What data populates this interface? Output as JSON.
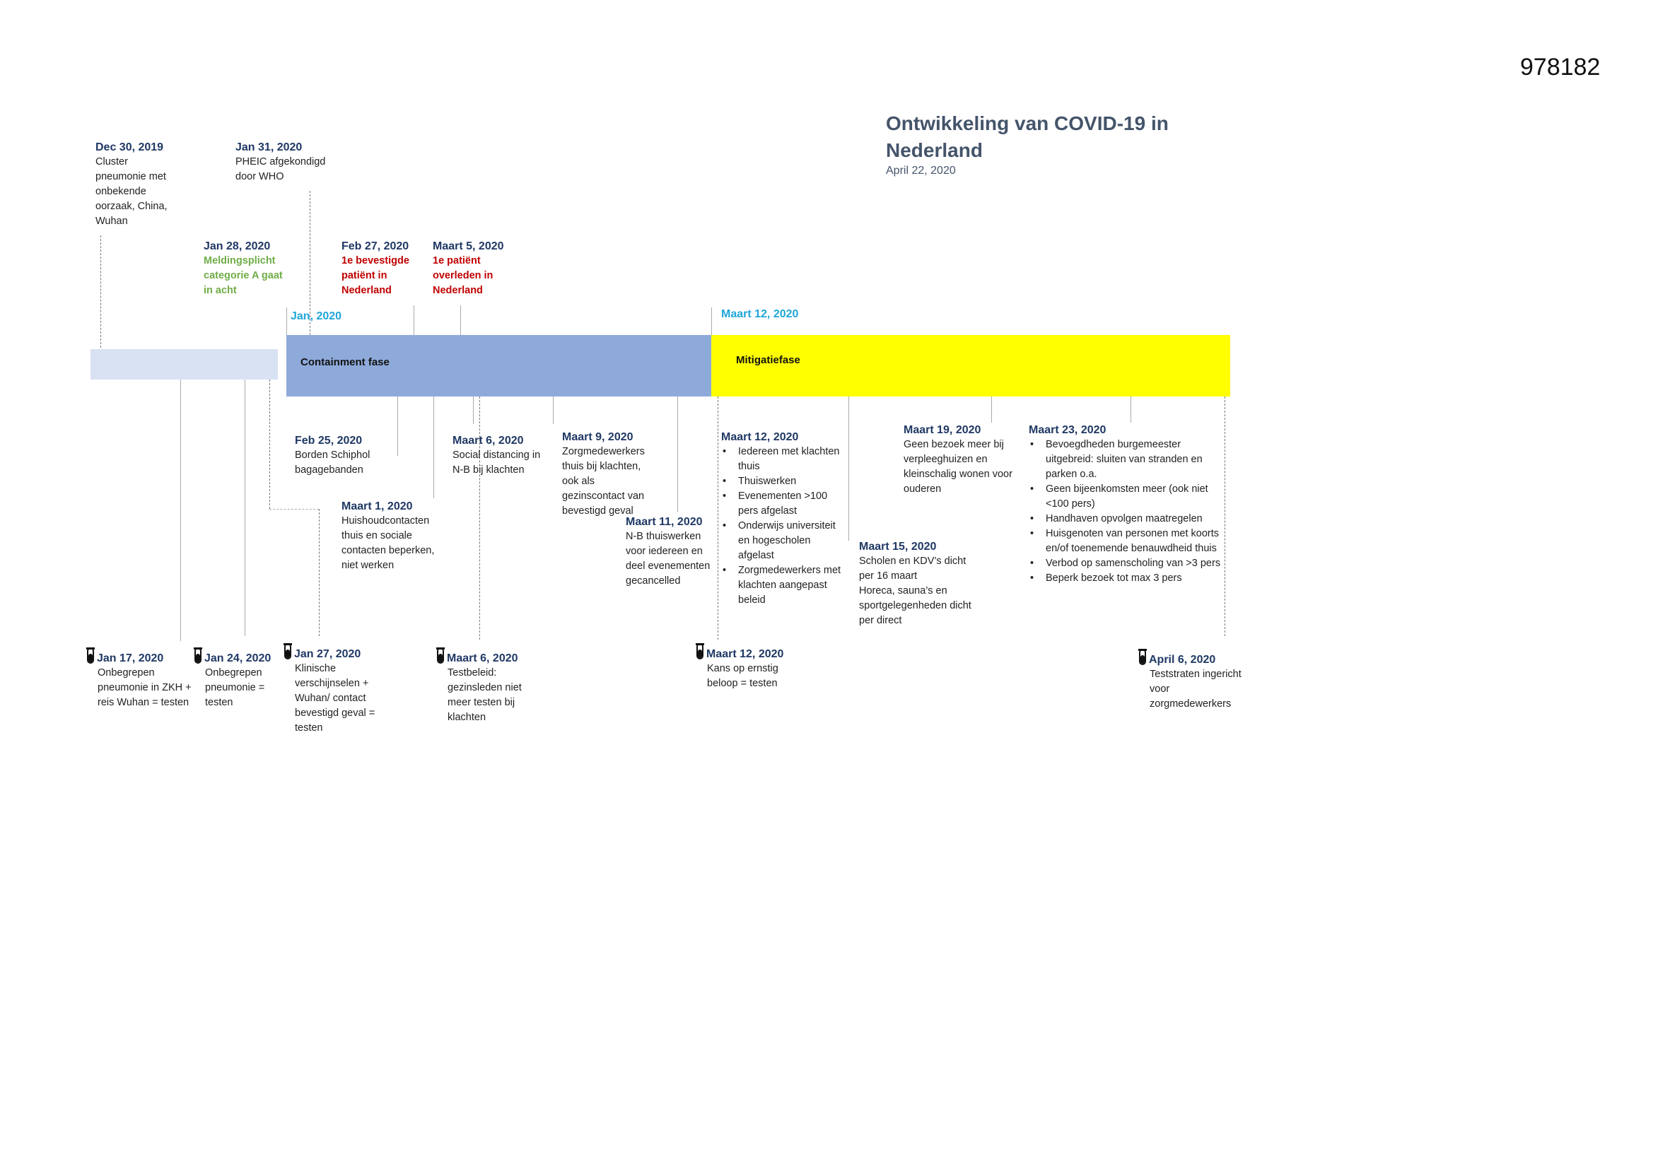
{
  "doc_id": "978182",
  "title": "Ontwikkeling van COVID-19 in Nederland",
  "date": "April 22, 2020",
  "colors": {
    "pre_phase": "#d9e2f3",
    "containment": "#8eaadb",
    "mitigation": "#ffff00",
    "date_heading": "#1f3864",
    "phase_date": "#1fa6d8",
    "green": "#70ad47",
    "red": "#c00000"
  },
  "phases": {
    "containment": {
      "label": "Containment fase",
      "start": "Jan, 2020"
    },
    "mitigation": {
      "label": "Mitigatiefase",
      "start": "Maart 12, 2020"
    }
  },
  "top_events": [
    {
      "date": "Dec 30, 2019",
      "text": "Cluster pneumonie met onbekende oorzaak, China, Wuhan"
    },
    {
      "date": "Jan 31, 2020",
      "text": "PHEIC afgekondigd door WHO"
    },
    {
      "date": "Jan 28, 2020",
      "text": "Meldingsplicht categorie A gaat in acht"
    },
    {
      "date": "Feb 27, 2020",
      "text": "1e bevestigde patiënt in Nederland"
    },
    {
      "date": "Maart 5, 2020",
      "text": "1e patiënt overleden in Nederland"
    }
  ],
  "bottom_events": [
    {
      "date": "Feb 25, 2020",
      "text": "Borden Schiphol bagagebanden"
    },
    {
      "date": "Maart 1, 2020",
      "text": "Huishoudcontacten thuis en sociale contacten beperken, niet werken"
    },
    {
      "date": "Maart 6, 2020",
      "text": "Social distancing in N-B bij klachten"
    },
    {
      "date": "Maart 9, 2020",
      "text": "Zorgmedewerkers thuis bij klachten, ook als gezinscontact van bevestigd geval"
    },
    {
      "date": "Maart 11, 2020",
      "text": "N-B thuiswerken voor iedereen en deel evenementen gecancelled"
    },
    {
      "date": "Maart 12, 2020",
      "items": [
        "Iedereen met klachten thuis",
        "Thuiswerken",
        "Evenementen >100 pers afgelast",
        "Onderwijs universiteit en hogescholen afgelast",
        "Zorgmedewerkers met klachten aangepast beleid"
      ]
    },
    {
      "date": "Maart 19, 2020",
      "text": "Geen bezoek meer bij verpleeghuizen en kleinschalig wonen voor ouderen"
    },
    {
      "date": "Maart 15, 2020",
      "text": "Scholen en KDV’s dicht per 16 maart",
      "text2": "Horeca, sauna’s en sportgelegenheden dicht per direct"
    },
    {
      "date": "Maart 23, 2020",
      "items": [
        "Bevoegdheden burgemeester uitgebreid: sluiten van stranden en parken o.a.",
        "Geen bijeenkomsten meer (ook niet <100 pers)",
        "Handhaven opvolgen maatregelen",
        "Huisgenoten van personen met koorts en/of toenemende benauwdheid thuis",
        "Verbod op samenscholing van >3 pers",
        "Beperk bezoek tot max 3 pers"
      ]
    }
  ],
  "test_events": [
    {
      "icon": "test-tube-icon",
      "date": "Jan 17, 2020",
      "text": "Onbegrepen pneumonie in ZKH + reis Wuhan = testen"
    },
    {
      "icon": "test-tube-icon",
      "date": "Jan 24, 2020",
      "text": "Onbegrepen pneumonie = testen"
    },
    {
      "icon": "test-tube-icon",
      "date": "Jan 27, 2020",
      "text": "Klinische verschijnselen + Wuhan/ contact bevestigd geval = testen"
    },
    {
      "icon": "test-tube-icon",
      "date": "Maart 6, 2020",
      "text": "Testbeleid: gezinsleden niet meer  testen bij klachten"
    },
    {
      "icon": "test-tube-icon",
      "date": "Maart 12, 2020",
      "text": "Kans op ernstig beloop = testen"
    },
    {
      "icon": "test-tube-icon",
      "date": "April 6, 2020",
      "text": "Teststraten ingericht voor zorgmedewerkers"
    }
  ]
}
